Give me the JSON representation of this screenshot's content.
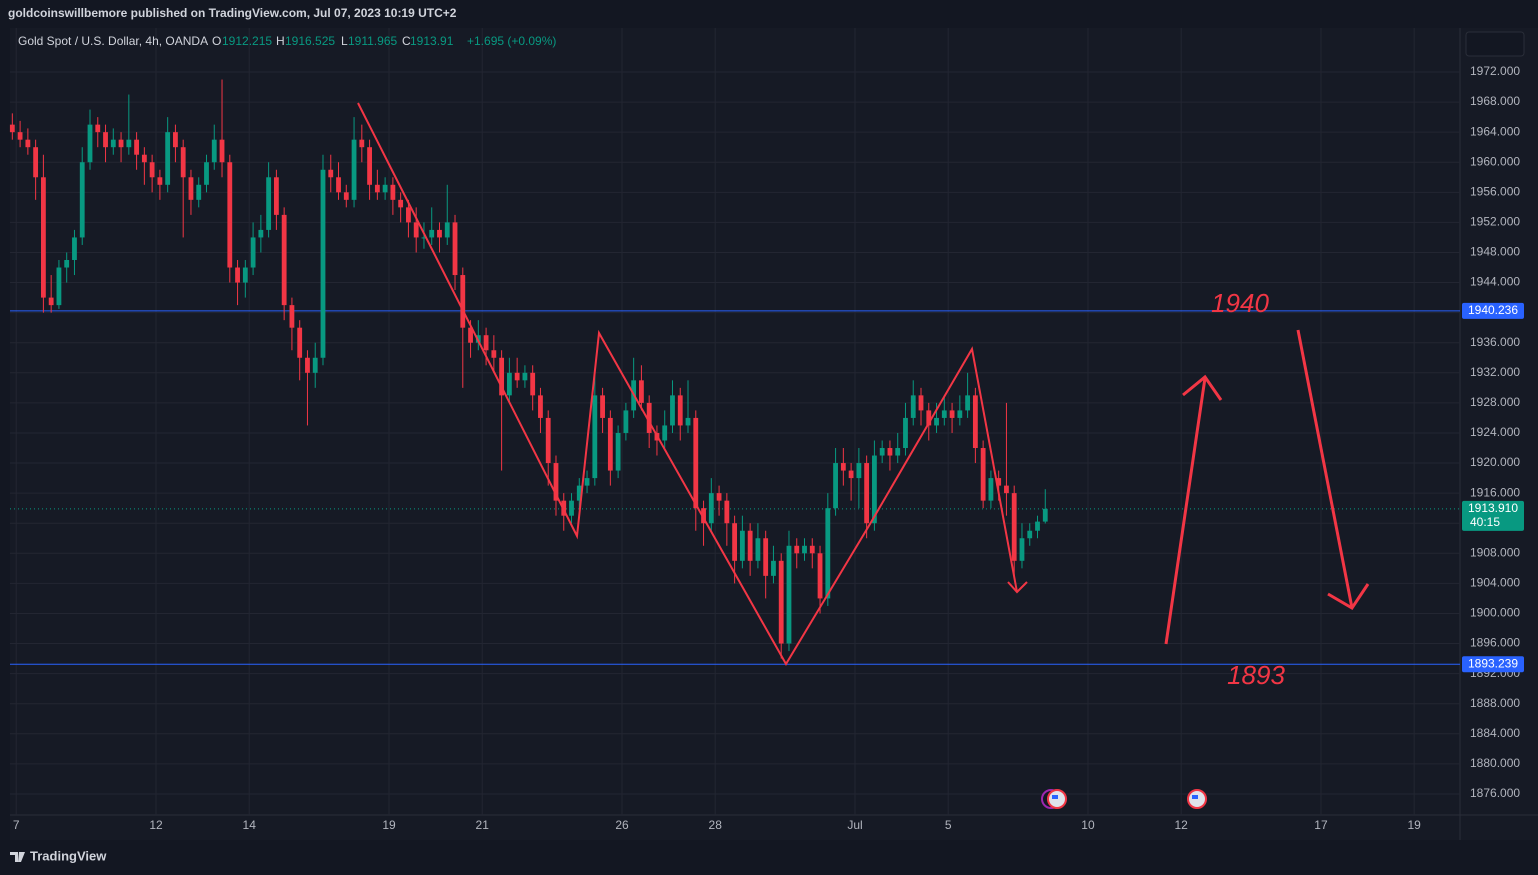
{
  "header": "goldcoinswillbemore published on TradingView.com, Jul 07, 2023 10:19 UTC+2",
  "footer": "TradingView",
  "chart_data": {
    "type": "candlestick",
    "symbol": "Gold Spot / U.S. Dollar, 4h, OANDA",
    "ohlc_labels": [
      "O",
      "H",
      "L",
      "C"
    ],
    "change": "+1.695 (+0.09%)",
    "up_color": "#089981",
    "down_color": "#f23645",
    "ohlc": [
      [
        1965,
        1966.5,
        1963,
        1964
      ],
      [
        1964,
        1965.5,
        1962,
        1963
      ],
      [
        1963,
        1964.5,
        1961,
        1962
      ],
      [
        1962,
        1963,
        1955,
        1958
      ],
      [
        1958,
        1961,
        1940,
        1942
      ],
      [
        1942,
        1945,
        1940,
        1941
      ],
      [
        1941,
        1947,
        1940.5,
        1946
      ],
      [
        1946,
        1948,
        1944,
        1947
      ],
      [
        1947,
        1951,
        1945,
        1950
      ],
      [
        1950,
        1962,
        1949,
        1960
      ],
      [
        1960,
        1967,
        1959,
        1965
      ],
      [
        1965,
        1966,
        1962,
        1964
      ],
      [
        1964,
        1965,
        1960,
        1962
      ],
      [
        1962,
        1964.5,
        1961,
        1963
      ],
      [
        1963,
        1964,
        1960,
        1962
      ],
      [
        1962,
        1969,
        1961,
        1963
      ],
      [
        1963,
        1964,
        1959,
        1961
      ],
      [
        1961,
        1962,
        1957,
        1960
      ],
      [
        1960,
        1961,
        1956,
        1958
      ],
      [
        1958,
        1959,
        1955,
        1957
      ],
      [
        1957,
        1966,
        1956,
        1964
      ],
      [
        1964,
        1965,
        1960,
        1962
      ],
      [
        1962,
        1963,
        1950,
        1958
      ],
      [
        1958,
        1959,
        1953,
        1955
      ],
      [
        1955,
        1958,
        1954,
        1957
      ],
      [
        1957,
        1961,
        1956,
        1960
      ],
      [
        1960,
        1965,
        1959,
        1963
      ],
      [
        1963,
        1971,
        1958,
        1960
      ],
      [
        1960,
        1961,
        1944,
        1946
      ],
      [
        1946,
        1947,
        1941,
        1944
      ],
      [
        1944,
        1947,
        1942,
        1946
      ],
      [
        1946,
        1952,
        1945,
        1950
      ],
      [
        1950,
        1953,
        1948,
        1951
      ],
      [
        1951,
        1960,
        1950,
        1958
      ],
      [
        1958,
        1959,
        1951,
        1953
      ],
      [
        1953,
        1954,
        1939,
        1941
      ],
      [
        1941,
        1942,
        1935,
        1938
      ],
      [
        1938,
        1939,
        1931,
        1934
      ],
      [
        1934,
        1935,
        1925,
        1932
      ],
      [
        1932,
        1936,
        1930,
        1934
      ],
      [
        1934,
        1961,
        1933,
        1959
      ],
      [
        1959,
        1961,
        1956,
        1958
      ],
      [
        1958,
        1960,
        1955,
        1956
      ],
      [
        1956,
        1957,
        1954,
        1955
      ],
      [
        1955,
        1966,
        1954,
        1963
      ],
      [
        1963,
        1965,
        1960,
        1962
      ],
      [
        1962,
        1963,
        1955,
        1957
      ],
      [
        1957,
        1959,
        1955,
        1956
      ],
      [
        1956,
        1958,
        1955,
        1957
      ],
      [
        1957,
        1958,
        1953,
        1955
      ],
      [
        1955,
        1956,
        1952,
        1954
      ],
      [
        1954,
        1955,
        1950,
        1952
      ],
      [
        1952,
        1954,
        1948,
        1950
      ],
      [
        1950,
        1952,
        1948.5,
        1950
      ],
      [
        1950,
        1954,
        1949,
        1951
      ],
      [
        1951,
        1952,
        1948,
        1950
      ],
      [
        1950,
        1957,
        1949,
        1952
      ],
      [
        1952,
        1953,
        1943,
        1945
      ],
      [
        1945,
        1946,
        1930,
        1938
      ],
      [
        1938,
        1939,
        1934,
        1936
      ],
      [
        1936,
        1939,
        1935,
        1937
      ],
      [
        1937,
        1938,
        1933,
        1935
      ],
      [
        1935,
        1937,
        1932,
        1934
      ],
      [
        1934,
        1935,
        1919,
        1929
      ],
      [
        1929,
        1934,
        1928,
        1932
      ],
      [
        1932,
        1934,
        1930,
        1931
      ],
      [
        1931,
        1933,
        1930,
        1932
      ],
      [
        1932,
        1933,
        1927,
        1929
      ],
      [
        1929,
        1930,
        1924,
        1926
      ],
      [
        1926,
        1927,
        1917,
        1920
      ],
      [
        1920,
        1921,
        1913,
        1915
      ],
      [
        1915,
        1916,
        1911,
        1913
      ],
      [
        1913,
        1916,
        1912,
        1915
      ],
      [
        1915,
        1918,
        1914,
        1917
      ],
      [
        1917,
        1919,
        1916,
        1918
      ],
      [
        1918,
        1932,
        1917,
        1929
      ],
      [
        1929,
        1930,
        1924,
        1926
      ],
      [
        1926,
        1927,
        1917,
        1919
      ],
      [
        1919,
        1925,
        1918,
        1924
      ],
      [
        1924,
        1928,
        1923,
        1927
      ],
      [
        1927,
        1934,
        1926,
        1931
      ],
      [
        1931,
        1933,
        1927,
        1928
      ],
      [
        1928,
        1929,
        1922,
        1924
      ],
      [
        1924,
        1925,
        1921,
        1923
      ],
      [
        1923,
        1927,
        1922,
        1925
      ],
      [
        1925,
        1931,
        1924,
        1929
      ],
      [
        1929,
        1930,
        1923,
        1925
      ],
      [
        1925,
        1931,
        1924,
        1926
      ],
      [
        1926,
        1927,
        1911,
        1914
      ],
      [
        1914,
        1915,
        1909,
        1912
      ],
      [
        1912,
        1918,
        1911,
        1916
      ],
      [
        1916,
        1917,
        1913,
        1915
      ],
      [
        1915,
        1916,
        1909,
        1912
      ],
      [
        1912,
        1913,
        1904,
        1907
      ],
      [
        1907,
        1913,
        1906,
        1911
      ],
      [
        1911,
        1912,
        1905,
        1907
      ],
      [
        1907,
        1912,
        1906,
        1910
      ],
      [
        1910,
        1911,
        1902,
        1905
      ],
      [
        1905,
        1909,
        1904,
        1907
      ],
      [
        1907,
        1908,
        1894,
        1896
      ],
      [
        1896,
        1911,
        1895,
        1909
      ],
      [
        1909,
        1910,
        1906,
        1908
      ],
      [
        1908,
        1910,
        1907,
        1909
      ],
      [
        1909,
        1910,
        1906,
        1908
      ],
      [
        1908,
        1909,
        1900,
        1902
      ],
      [
        1902,
        1916,
        1901,
        1914
      ],
      [
        1914,
        1922,
        1913,
        1920
      ],
      [
        1920,
        1922,
        1917,
        1919
      ],
      [
        1919,
        1920,
        1915,
        1918
      ],
      [
        1918,
        1922,
        1914,
        1920
      ],
      [
        1920,
        1921,
        1910,
        1912
      ],
      [
        1912,
        1923,
        1911,
        1921
      ],
      [
        1921,
        1923,
        1920,
        1922
      ],
      [
        1922,
        1923,
        1919,
        1921
      ],
      [
        1921,
        1924,
        1920,
        1922
      ],
      [
        1922,
        1928,
        1921,
        1926
      ],
      [
        1926,
        1931,
        1925,
        1929
      ],
      [
        1929,
        1930,
        1925,
        1927
      ],
      [
        1927,
        1928,
        1923,
        1925
      ],
      [
        1925,
        1928,
        1924,
        1926
      ],
      [
        1926,
        1929,
        1925,
        1927
      ],
      [
        1927,
        1928,
        1924,
        1926
      ],
      [
        1926,
        1929,
        1925,
        1927
      ],
      [
        1927,
        1932,
        1926,
        1929
      ],
      [
        1929,
        1930,
        1920,
        1922
      ],
      [
        1922,
        1923,
        1914,
        1915
      ],
      [
        1915,
        1919,
        1914,
        1918
      ],
      [
        1918,
        1919,
        1915,
        1917
      ],
      [
        1917,
        1928,
        1913,
        1916
      ],
      [
        1916,
        1917,
        1905,
        1907
      ],
      [
        1907,
        1912,
        1906,
        1910
      ],
      [
        1910,
        1912,
        1909,
        1911
      ],
      [
        1911,
        1913,
        1910,
        1912.215
      ],
      [
        1912.215,
        1916.525,
        1911.965,
        1913.91
      ]
    ],
    "xlim": [
      -0.3,
      186.4
    ],
    "xticks": [
      {
        "value": 0.5,
        "label": "7"
      },
      {
        "value": 18.5,
        "label": "12"
      },
      {
        "value": 30.5,
        "label": "14"
      },
      {
        "value": 48.5,
        "label": "19"
      },
      {
        "value": 60.5,
        "label": "21"
      },
      {
        "value": 78.5,
        "label": "26"
      },
      {
        "value": 90.5,
        "label": "28"
      },
      {
        "value": 108.5,
        "label": "Jul"
      },
      {
        "value": 120.5,
        "label": "5"
      },
      {
        "value": 138.5,
        "label": "10"
      },
      {
        "value": 150.5,
        "label": "12"
      },
      {
        "value": 168.5,
        "label": "17"
      },
      {
        "value": 180.5,
        "label": "19"
      }
    ],
    "ylim": [
      1873.2,
      1977.85
    ],
    "yticks": [
      {
        "value": 1876,
        "label": "1876.000"
      },
      {
        "value": 1880,
        "label": "1880.000"
      },
      {
        "value": 1884,
        "label": "1884.000"
      },
      {
        "value": 1888,
        "label": "1888.000"
      },
      {
        "value": 1892,
        "label": "1892.000"
      },
      {
        "value": 1896,
        "label": "1896.000"
      },
      {
        "value": 1900,
        "label": "1900.000"
      },
      {
        "value": 1904,
        "label": "1904.000"
      },
      {
        "value": 1908,
        "label": "1908.000"
      },
      {
        "value": 1912,
        "label": "1912.000"
      },
      {
        "value": 1916,
        "label": "1916.000"
      },
      {
        "value": 1920,
        "label": "1920.000"
      },
      {
        "value": 1924,
        "label": "1924.000"
      },
      {
        "value": 1928,
        "label": "1928.000"
      },
      {
        "value": 1932,
        "label": "1932.000"
      },
      {
        "value": 1936,
        "label": "1936.000"
      },
      {
        "value": 1940,
        "label": "1940.000"
      },
      {
        "value": 1944,
        "label": "1944.000"
      },
      {
        "value": 1948,
        "label": "1948.000"
      },
      {
        "value": 1952,
        "label": "1952.000"
      },
      {
        "value": 1956,
        "label": "1956.000"
      },
      {
        "value": 1960,
        "label": "1960.000"
      },
      {
        "value": 1964,
        "label": "1964.000"
      },
      {
        "value": 1968,
        "label": "1968.000"
      },
      {
        "value": 1972,
        "label": "1972.000"
      }
    ],
    "grid": true,
    "hlines": [
      {
        "value": 1940.236,
        "label": "1940.236"
      },
      {
        "value": 1893.239,
        "label": "1893.239"
      }
    ],
    "hline_color": "#2962ff",
    "last_price": {
      "value": 1913.91,
      "label": "1913.910"
    },
    "countdown": "40:15",
    "annotations": [
      "1940",
      "1893"
    ]
  }
}
